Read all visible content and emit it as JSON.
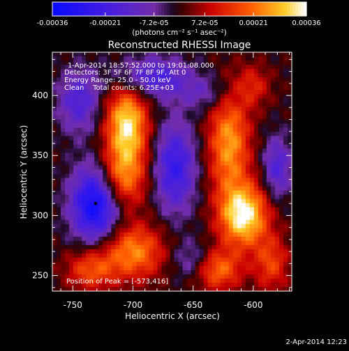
{
  "chart_data": {
    "type": "heatmap",
    "title": "Reconstructed RHESSI Image",
    "xlabel": "Heliocentric X (arcsec)",
    "ylabel": "Heliocentric Y (arcsec)",
    "xlim": [
      -767,
      -568
    ],
    "ylim": [
      237,
      436
    ],
    "xticks": [
      -750,
      -700,
      -650,
      -600
    ],
    "yticks": [
      250,
      300,
      350,
      400
    ],
    "colorbar": {
      "ticks": [
        "-0.00036",
        "-0.00021",
        "-7.2e-05",
        "7.2e-05",
        "0.00021",
        "0.00036"
      ],
      "values": [
        -0.00036,
        -0.00021,
        -7.2e-05,
        7.2e-05,
        0.00021,
        0.00036
      ],
      "range": [
        -0.00036,
        0.00036
      ],
      "units": "(photons cm⁻² s⁻¹ asec⁻²)"
    },
    "annotations": [
      "1-Apr-2014 18:57:52.000 to 19:01:08.000",
      "Detectors: 3F 5F 6F 7F 8F 9F, Att 0",
      "Energy Range: 25.0 - 50.0 keV",
      "Clean    Total counts: 6.25E+03"
    ],
    "peak_text": "Position of Peak = [-573,416]",
    "marker_point": [
      -731,
      310
    ],
    "sources": [
      {
        "x": -705,
        "y": 375,
        "sx": 12,
        "sy": 24,
        "amp": 0.00034
      },
      {
        "x": -710,
        "y": 330,
        "sx": 14,
        "sy": 18,
        "amp": 0.00022
      },
      {
        "x": -700,
        "y": 270,
        "sx": 18,
        "sy": 16,
        "amp": 0.00024
      },
      {
        "x": -735,
        "y": 255,
        "sx": 14,
        "sy": 12,
        "amp": 0.00018
      },
      {
        "x": -620,
        "y": 360,
        "sx": 12,
        "sy": 30,
        "amp": 0.00026
      },
      {
        "x": -608,
        "y": 300,
        "sx": 14,
        "sy": 18,
        "amp": 0.00036
      },
      {
        "x": -630,
        "y": 255,
        "sx": 14,
        "sy": 12,
        "amp": 0.00022
      },
      {
        "x": -585,
        "y": 260,
        "sx": 10,
        "sy": 16,
        "amp": 0.00016
      },
      {
        "x": -600,
        "y": 408,
        "sx": 10,
        "sy": 12,
        "amp": 0.00012
      },
      {
        "x": -731,
        "y": 310,
        "sx": 14,
        "sy": 22,
        "amp": -0.00036
      },
      {
        "x": -665,
        "y": 340,
        "sx": 12,
        "sy": 26,
        "amp": -0.00024
      },
      {
        "x": -685,
        "y": 415,
        "sx": 22,
        "sy": 12,
        "amp": -0.0002
      },
      {
        "x": -745,
        "y": 395,
        "sx": 12,
        "sy": 18,
        "amp": -0.00018
      },
      {
        "x": -650,
        "y": 262,
        "sx": 12,
        "sy": 12,
        "amp": -0.00012
      },
      {
        "x": -580,
        "y": 340,
        "sx": 8,
        "sy": 18,
        "amp": -0.00018
      },
      {
        "x": -640,
        "y": 402,
        "sx": 16,
        "sy": 10,
        "amp": -0.0001
      }
    ],
    "grid": false
  },
  "footer": {
    "timestamp": "2-Apr-2014 12:23"
  }
}
